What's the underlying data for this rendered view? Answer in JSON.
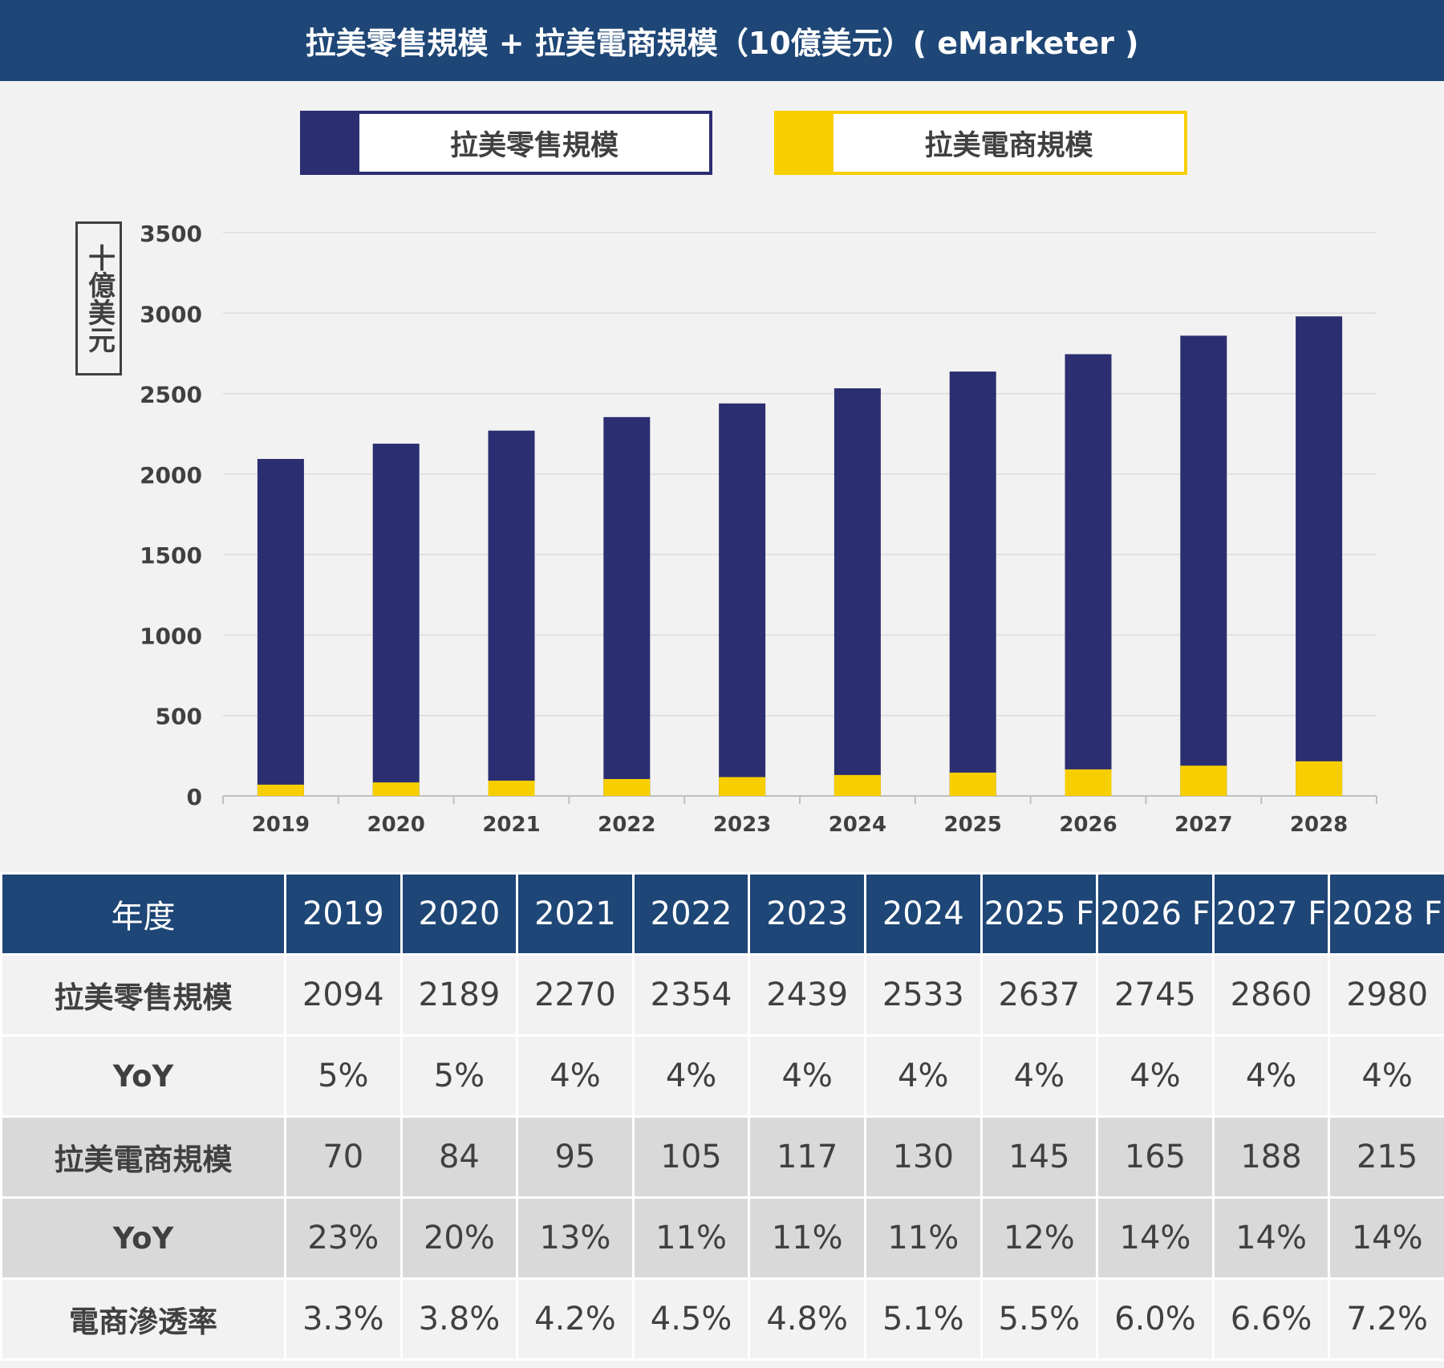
{
  "title": "拉美零售規模 + 拉美電商規模（10億美元）( eMarketer )",
  "legend": [
    {
      "label": "拉美零售規模",
      "color": "#2c2e72"
    },
    {
      "label": "拉美電商規模",
      "color": "#f7cf00"
    }
  ],
  "unit_label": "十億美元",
  "chart_data": {
    "type": "bar",
    "stacked": false,
    "overlap": true,
    "categories": [
      "2019",
      "2020",
      "2021",
      "2022",
      "2023",
      "2024",
      "2025",
      "2026",
      "2027",
      "2028"
    ],
    "series": [
      {
        "name": "拉美零售規模",
        "color": "#2c2e72",
        "values": [
          2094,
          2189,
          2270,
          2354,
          2439,
          2533,
          2637,
          2745,
          2860,
          2980
        ]
      },
      {
        "name": "拉美電商規模",
        "color": "#f7cf00",
        "values": [
          70,
          84,
          95,
          105,
          117,
          130,
          145,
          165,
          188,
          215
        ]
      }
    ],
    "ylim": [
      0,
      3500
    ],
    "yticks": [
      "0",
      "500",
      "1000",
      "1500",
      "2000",
      "2500",
      "3000",
      "3500"
    ],
    "ylabel": "十億美元",
    "xlabel": "",
    "grid": true,
    "legend_position": "top"
  },
  "table": {
    "header": [
      "年度",
      "2019",
      "2020",
      "2021",
      "2022",
      "2023",
      "2024",
      "2025 F",
      "2026 F",
      "2027 F",
      "2028 F"
    ],
    "rows": [
      {
        "style": "light",
        "cells": [
          "拉美零售規模",
          "2094",
          "2189",
          "2270",
          "2354",
          "2439",
          "2533",
          "2637",
          "2745",
          "2860",
          "2980"
        ]
      },
      {
        "style": "light",
        "cells": [
          "YoY",
          "5%",
          "5%",
          "4%",
          "4%",
          "4%",
          "4%",
          "4%",
          "4%",
          "4%",
          "4%"
        ]
      },
      {
        "style": "dark",
        "cells": [
          "拉美電商規模",
          "70",
          "84",
          "95",
          "105",
          "117",
          "130",
          "145",
          "165",
          "188",
          "215"
        ]
      },
      {
        "style": "dark",
        "cells": [
          "YoY",
          "23%",
          "20%",
          "13%",
          "11%",
          "11%",
          "11%",
          "12%",
          "14%",
          "14%",
          "14%"
        ]
      },
      {
        "style": "light",
        "cells": [
          "電商滲透率",
          "3.3%",
          "3.8%",
          "4.2%",
          "4.5%",
          "4.8%",
          "5.1%",
          "5.5%",
          "6.0%",
          "6.6%",
          "7.2%"
        ]
      }
    ]
  }
}
